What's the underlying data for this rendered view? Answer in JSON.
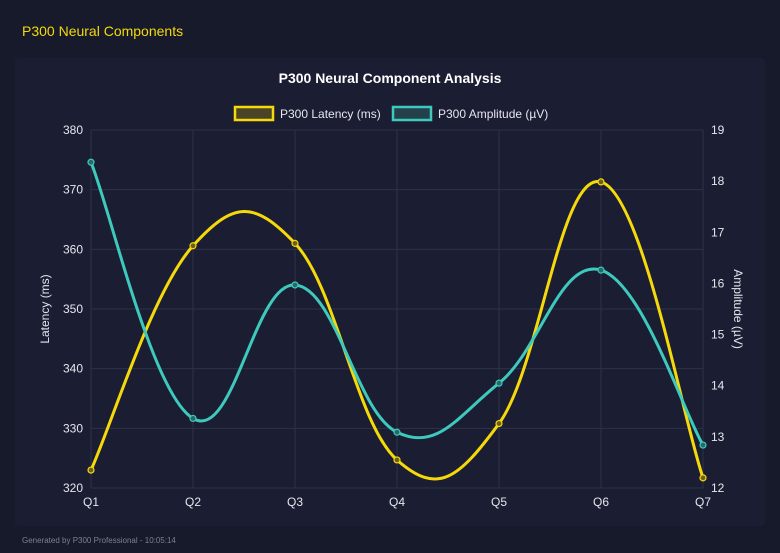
{
  "header": {
    "title": "P300 Neural Components"
  },
  "footer": {
    "text": "Generated by P300 Professional - 10:05:14"
  },
  "chart_data": {
    "type": "line",
    "title": "P300 Neural Component Analysis",
    "categories": [
      "Q1",
      "Q2",
      "Q3",
      "Q4",
      "Q5",
      "Q6",
      "Q7"
    ],
    "series": [
      {
        "name": "P300 Latency (ms)",
        "axis": "left",
        "color": "#f5d90a",
        "values": [
          323,
          360.6,
          361,
          324.7,
          330.8,
          371.3,
          321.7
        ]
      },
      {
        "name": "P300 Amplitude (µV)",
        "axis": "right",
        "color": "#3ec9bd",
        "values": [
          18.37,
          13.36,
          15.97,
          13.09,
          14.05,
          16.26,
          12.84
        ]
      }
    ],
    "y_left": {
      "label": "Latency (ms)",
      "range": [
        320,
        380
      ],
      "ticks": [
        320,
        330,
        340,
        350,
        360,
        370,
        380
      ]
    },
    "y_right": {
      "label": "Amplitude (µV)",
      "range": [
        12,
        19
      ],
      "ticks": [
        12,
        13,
        14,
        15,
        16,
        17,
        18,
        19
      ]
    },
    "grid": true,
    "legend": "top",
    "smooth": true
  }
}
